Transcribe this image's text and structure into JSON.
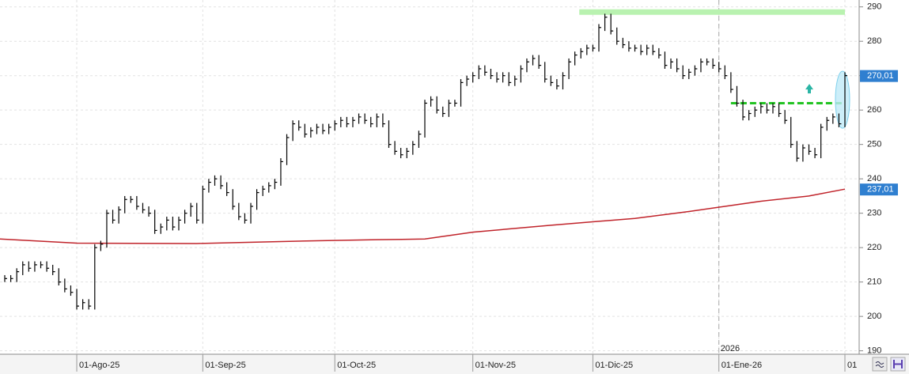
{
  "chart_data": {
    "type": "hlc",
    "categories": [
      null,
      null,
      null,
      null,
      null,
      null,
      null,
      null,
      null,
      null,
      null,
      null,
      "01-Ago-25",
      null,
      null,
      null,
      null,
      null,
      null,
      null,
      null,
      null,
      null,
      null,
      null,
      null,
      null,
      null,
      null,
      null,
      null,
      null,
      null,
      "01-Sep-25",
      null,
      null,
      null,
      null,
      null,
      null,
      null,
      null,
      null,
      null,
      null,
      null,
      null,
      null,
      null,
      null,
      null,
      null,
      null,
      null,
      null,
      "01-Oct-25",
      null,
      null,
      null,
      null,
      null,
      null,
      null,
      null,
      null,
      null,
      null,
      null,
      null,
      null,
      null,
      null,
      null,
      null,
      null,
      null,
      null,
      null,
      "01-Nov-25",
      null,
      null,
      null,
      null,
      null,
      null,
      null,
      null,
      null,
      null,
      null,
      null,
      null,
      null,
      null,
      null,
      null,
      null,
      null,
      "01-Dic-25",
      null,
      null,
      null,
      null,
      null,
      null,
      null,
      null,
      null,
      null,
      null,
      null,
      null,
      null,
      null,
      null,
      null,
      null,
      null,
      null,
      "01-Ene-26",
      null,
      null,
      null,
      null,
      null,
      null,
      null,
      null,
      null,
      null,
      null,
      null,
      null,
      null,
      null,
      null,
      null,
      null,
      null,
      null,
      "01"
    ],
    "high": [
      212,
      212,
      214,
      216,
      216,
      216,
      216,
      216,
      215,
      214,
      211,
      209,
      208,
      205,
      205,
      221,
      222,
      231,
      231,
      232,
      235,
      235,
      235,
      233,
      232,
      231,
      227,
      229,
      229,
      229,
      231,
      233,
      233,
      238,
      240,
      241,
      241,
      239,
      237,
      233,
      230,
      233,
      237,
      238,
      239,
      240,
      246,
      253,
      257,
      257,
      256,
      255,
      256,
      256,
      256,
      257,
      258,
      258,
      258,
      259,
      259,
      258,
      259,
      259,
      257,
      251,
      249,
      249,
      251,
      254,
      263,
      264,
      264,
      261,
      263,
      263,
      269,
      270,
      271,
      273,
      273,
      272,
      271,
      271,
      271,
      270,
      273,
      275,
      276,
      276,
      274,
      270,
      269,
      271,
      275,
      277,
      278,
      279,
      279,
      285,
      288,
      288,
      284,
      281,
      280,
      279,
      279,
      279,
      279,
      278,
      277,
      275,
      275,
      273,
      272,
      273,
      275,
      275,
      275,
      274,
      273,
      271,
      267,
      263,
      260,
      261,
      262,
      262,
      262,
      262,
      260,
      258,
      251,
      250,
      250,
      249,
      256,
      258,
      259,
      259,
      271
    ],
    "low": [
      210,
      210,
      210,
      212,
      213,
      213,
      214,
      213,
      212,
      209,
      207,
      206,
      202,
      202,
      202,
      202,
      219,
      220,
      227,
      227,
      230,
      233,
      231,
      230,
      229,
      224,
      224,
      225,
      225,
      225,
      227,
      229,
      227,
      227,
      236,
      238,
      237,
      235,
      231,
      228,
      227,
      227,
      231,
      235,
      236,
      237,
      238,
      244,
      251,
      254,
      252,
      252,
      253,
      253,
      253,
      254,
      255,
      255,
      255,
      256,
      256,
      255,
      255,
      255,
      249,
      247,
      246,
      246,
      247,
      249,
      252,
      261,
      259,
      258,
      258,
      261,
      261,
      267,
      268,
      269,
      270,
      269,
      268,
      268,
      267,
      267,
      268,
      271,
      273,
      272,
      268,
      267,
      266,
      266,
      269,
      273,
      275,
      276,
      277,
      277,
      283,
      282,
      279,
      278,
      277,
      277,
      276,
      276,
      276,
      275,
      272,
      272,
      271,
      269,
      269,
      270,
      271,
      273,
      272,
      271,
      269,
      265,
      261,
      257,
      257,
      258,
      259,
      259,
      259,
      258,
      256,
      249,
      245,
      245,
      247,
      246,
      246,
      254,
      256,
      255,
      255
    ],
    "close": [
      211,
      211,
      213,
      215,
      214,
      215,
      215,
      214,
      213,
      210,
      208,
      207,
      203,
      204,
      203,
      220,
      221,
      230,
      228,
      231,
      234,
      234,
      232,
      231,
      230,
      225,
      226,
      228,
      226,
      228,
      230,
      232,
      228,
      237,
      239,
      240,
      238,
      236,
      232,
      229,
      228,
      232,
      236,
      237,
      238,
      239,
      245,
      252,
      256,
      255,
      253,
      254,
      255,
      254,
      255,
      256,
      257,
      256,
      257,
      258,
      257,
      256,
      258,
      256,
      250,
      248,
      247,
      248,
      250,
      253,
      262,
      263,
      260,
      259,
      262,
      262,
      268,
      269,
      270,
      272,
      271,
      270,
      269,
      270,
      268,
      269,
      272,
      274,
      275,
      273,
      269,
      268,
      267,
      270,
      274,
      276,
      277,
      278,
      278,
      284,
      287,
      283,
      280,
      279,
      278,
      278,
      277,
      278,
      277,
      276,
      273,
      274,
      272,
      270,
      271,
      272,
      274,
      274,
      273,
      272,
      270,
      266,
      262,
      258,
      259,
      260,
      261,
      260,
      261,
      259,
      257,
      250,
      246,
      249,
      248,
      247,
      255,
      257,
      258,
      256,
      270.01
    ],
    "close_label": "270,01",
    "color": "#000000",
    "ma": {
      "x": [
        0,
        12,
        32,
        52,
        62,
        70,
        78,
        91,
        105,
        114,
        126,
        134,
        140
      ],
      "values": [
        222.5,
        221.3,
        221.2,
        222,
        222.3,
        222.5,
        224.5,
        226.5,
        228.5,
        230.5,
        233.5,
        235,
        237.01
      ],
      "color": "#c0232a",
      "label": "237,01"
    },
    "levels": [
      {
        "value": 288.5,
        "start": 96,
        "color": "#b9f2b0",
        "style": "band"
      },
      {
        "value": 262,
        "start": 121,
        "color": "#22c322",
        "style": "dashed"
      }
    ],
    "year_label": "2026",
    "ylim": [
      189,
      292
    ],
    "yticks": [
      190,
      200,
      210,
      220,
      230,
      240,
      250,
      260,
      270,
      280,
      290
    ],
    "grid": true
  }
}
